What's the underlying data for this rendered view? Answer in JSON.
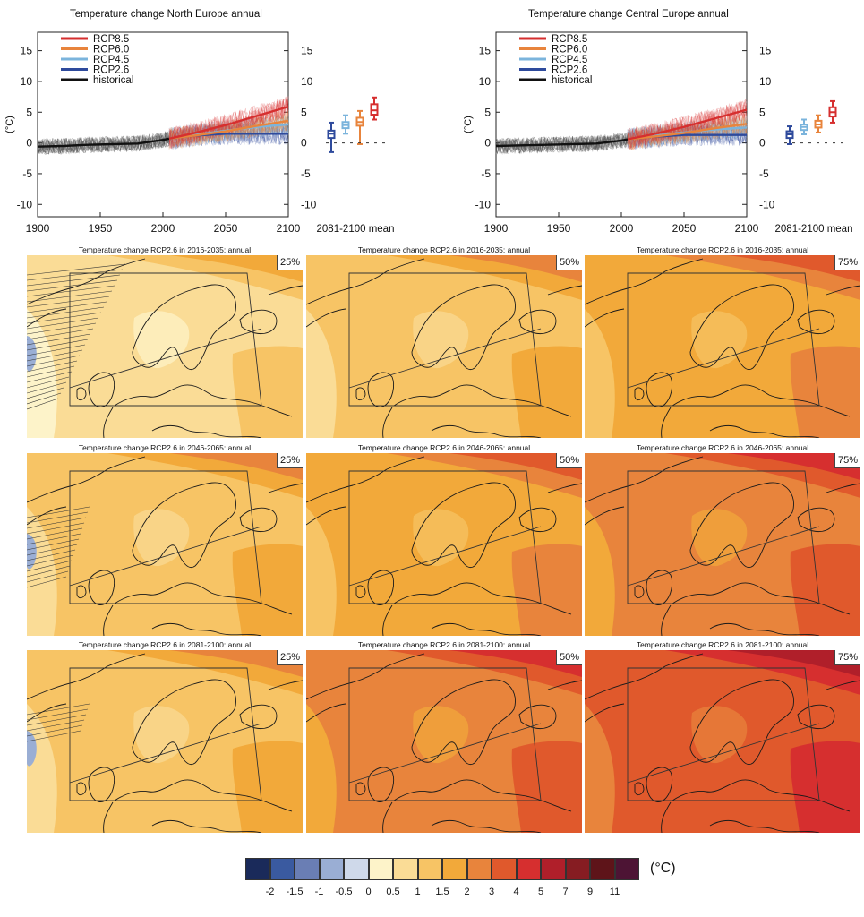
{
  "timeseries_panels": [
    {
      "title": "Temperature change North Europe annual",
      "y_unit": "(°C)",
      "y_ticks": [
        "15",
        "10",
        "5",
        "0",
        "-5",
        "-10"
      ],
      "x_ticks": [
        "1900",
        "1950",
        "2000",
        "2050",
        "2100"
      ],
      "boxplot_label": "2081-2100 mean"
    },
    {
      "title": "Temperature change Central Europe annual",
      "y_unit": "(°C)",
      "y_ticks": [
        "15",
        "10",
        "5",
        "0",
        "-5",
        "-10"
      ],
      "x_ticks": [
        "1900",
        "1950",
        "2000",
        "2050",
        "2100"
      ],
      "boxplot_label": "2081-2100 mean"
    }
  ],
  "legend": [
    {
      "label": "RCP8.5",
      "color": "#d62f2f"
    },
    {
      "label": "RCP6.0",
      "color": "#e8843c"
    },
    {
      "label": "RCP4.5",
      "color": "#7bb4dc"
    },
    {
      "label": "RCP2.6",
      "color": "#2e4a9c"
    },
    {
      "label": "historical",
      "color": "#111111"
    }
  ],
  "maps": {
    "rows": [
      {
        "titles": [
          "Temperature change RCP2.6 in 2016-2035: annual",
          "Temperature change RCP2.6 in 2016-2035: annual",
          "Temperature change RCP2.6 in 2016-2035: annual"
        ]
      },
      {
        "titles": [
          "Temperature change RCP2.6 in 2046-2065: annual",
          "Temperature change RCP2.6 in 2046-2065: annual",
          "Temperature change RCP2.6 in 2046-2065: annual"
        ]
      },
      {
        "titles": [
          "Temperature change RCP2.6 in 2081-2100: annual",
          "Temperature change RCP2.6 in 2081-2100: annual",
          "Temperature change RCP2.6 in 2081-2100: annual"
        ]
      }
    ],
    "percentiles": [
      "25%",
      "50%",
      "75%"
    ]
  },
  "colorbar": {
    "unit": "(°C)",
    "colors": [
      "#1a2a5a",
      "#3a5aa0",
      "#6a7eb4",
      "#9aaed4",
      "#cfd9ea",
      "#fdf3c9",
      "#fadc96",
      "#f7c465",
      "#f2a93a",
      "#e8843c",
      "#e0592c",
      "#d62f2f",
      "#b01f2a",
      "#861c22",
      "#5e1419",
      "#4d1434"
    ],
    "ticks": [
      "-2",
      "-1.5",
      "-1",
      "-0.5",
      "0",
      "0.5",
      "1",
      "1.5",
      "2",
      "3",
      "4",
      "5",
      "7",
      "9",
      "11"
    ]
  },
  "chart_data": [
    {
      "type": "line",
      "title": "Temperature change North Europe annual",
      "ylabel": "(°C)",
      "xlim": [
        1900,
        2100
      ],
      "ylim": [
        -12,
        18
      ],
      "series": [
        {
          "name": "historical",
          "x": [
            1900,
            1920,
            1940,
            1960,
            1980,
            2000,
            2005
          ],
          "y": [
            -0.6,
            -0.5,
            -0.3,
            -0.2,
            -0.1,
            0.5,
            0.7
          ]
        },
        {
          "name": "RCP2.6",
          "x": [
            2005,
            2025,
            2050,
            2075,
            2100
          ],
          "y": [
            0.7,
            1.2,
            1.5,
            1.5,
            1.5
          ]
        },
        {
          "name": "RCP4.5",
          "x": [
            2005,
            2025,
            2050,
            2075,
            2100
          ],
          "y": [
            0.7,
            1.3,
            2.0,
            2.6,
            3.0
          ]
        },
        {
          "name": "RCP6.0",
          "x": [
            2005,
            2025,
            2050,
            2075,
            2100
          ],
          "y": [
            0.7,
            1.2,
            1.9,
            2.8,
            3.6
          ]
        },
        {
          "name": "RCP8.5",
          "x": [
            2005,
            2025,
            2050,
            2075,
            2100
          ],
          "y": [
            0.7,
            1.6,
            2.9,
            4.4,
            5.9
          ]
        }
      ],
      "boxplots_2081_2100": [
        {
          "name": "RCP2.6",
          "min": -1.5,
          "q1": 0.8,
          "median": 1.5,
          "q3": 2.0,
          "max": 3.3
        },
        {
          "name": "RCP4.5",
          "min": 1.5,
          "q1": 2.4,
          "median": 2.9,
          "q3": 3.4,
          "max": 4.5
        },
        {
          "name": "RCP6.0",
          "min": -0.2,
          "q1": 2.8,
          "median": 3.4,
          "q3": 4.1,
          "max": 5.2
        },
        {
          "name": "RCP8.5",
          "min": 3.8,
          "q1": 4.6,
          "median": 5.3,
          "q3": 6.3,
          "max": 7.4
        }
      ]
    },
    {
      "type": "line",
      "title": "Temperature change Central Europe annual",
      "ylabel": "(°C)",
      "xlim": [
        1900,
        2100
      ],
      "ylim": [
        -12,
        18
      ],
      "series": [
        {
          "name": "historical",
          "x": [
            1900,
            1920,
            1940,
            1960,
            1980,
            2000,
            2005
          ],
          "y": [
            -0.5,
            -0.4,
            -0.3,
            -0.2,
            -0.1,
            0.4,
            0.6
          ]
        },
        {
          "name": "RCP2.6",
          "x": [
            2005,
            2025,
            2050,
            2075,
            2100
          ],
          "y": [
            0.6,
            1.0,
            1.3,
            1.3,
            1.3
          ]
        },
        {
          "name": "RCP4.5",
          "x": [
            2005,
            2025,
            2050,
            2075,
            2100
          ],
          "y": [
            0.6,
            1.1,
            1.7,
            2.2,
            2.5
          ]
        },
        {
          "name": "RCP6.0",
          "x": [
            2005,
            2025,
            2050,
            2075,
            2100
          ],
          "y": [
            0.6,
            1.0,
            1.6,
            2.4,
            3.1
          ]
        },
        {
          "name": "RCP8.5",
          "x": [
            2005,
            2025,
            2050,
            2075,
            2100
          ],
          "y": [
            0.6,
            1.4,
            2.6,
            4.0,
            5.4
          ]
        }
      ],
      "boxplots_2081_2100": [
        {
          "name": "RCP2.6",
          "min": -0.2,
          "q1": 0.8,
          "median": 1.4,
          "q3": 1.9,
          "max": 2.7
        },
        {
          "name": "RCP4.5",
          "min": 1.4,
          "q1": 2.1,
          "median": 2.6,
          "q3": 3.0,
          "max": 3.8
        },
        {
          "name": "RCP6.0",
          "min": 1.7,
          "q1": 2.5,
          "median": 3.0,
          "q3": 3.6,
          "max": 4.5
        },
        {
          "name": "RCP8.5",
          "min": 3.3,
          "q1": 4.3,
          "median": 5.0,
          "q3": 5.8,
          "max": 6.8
        }
      ]
    }
  ]
}
